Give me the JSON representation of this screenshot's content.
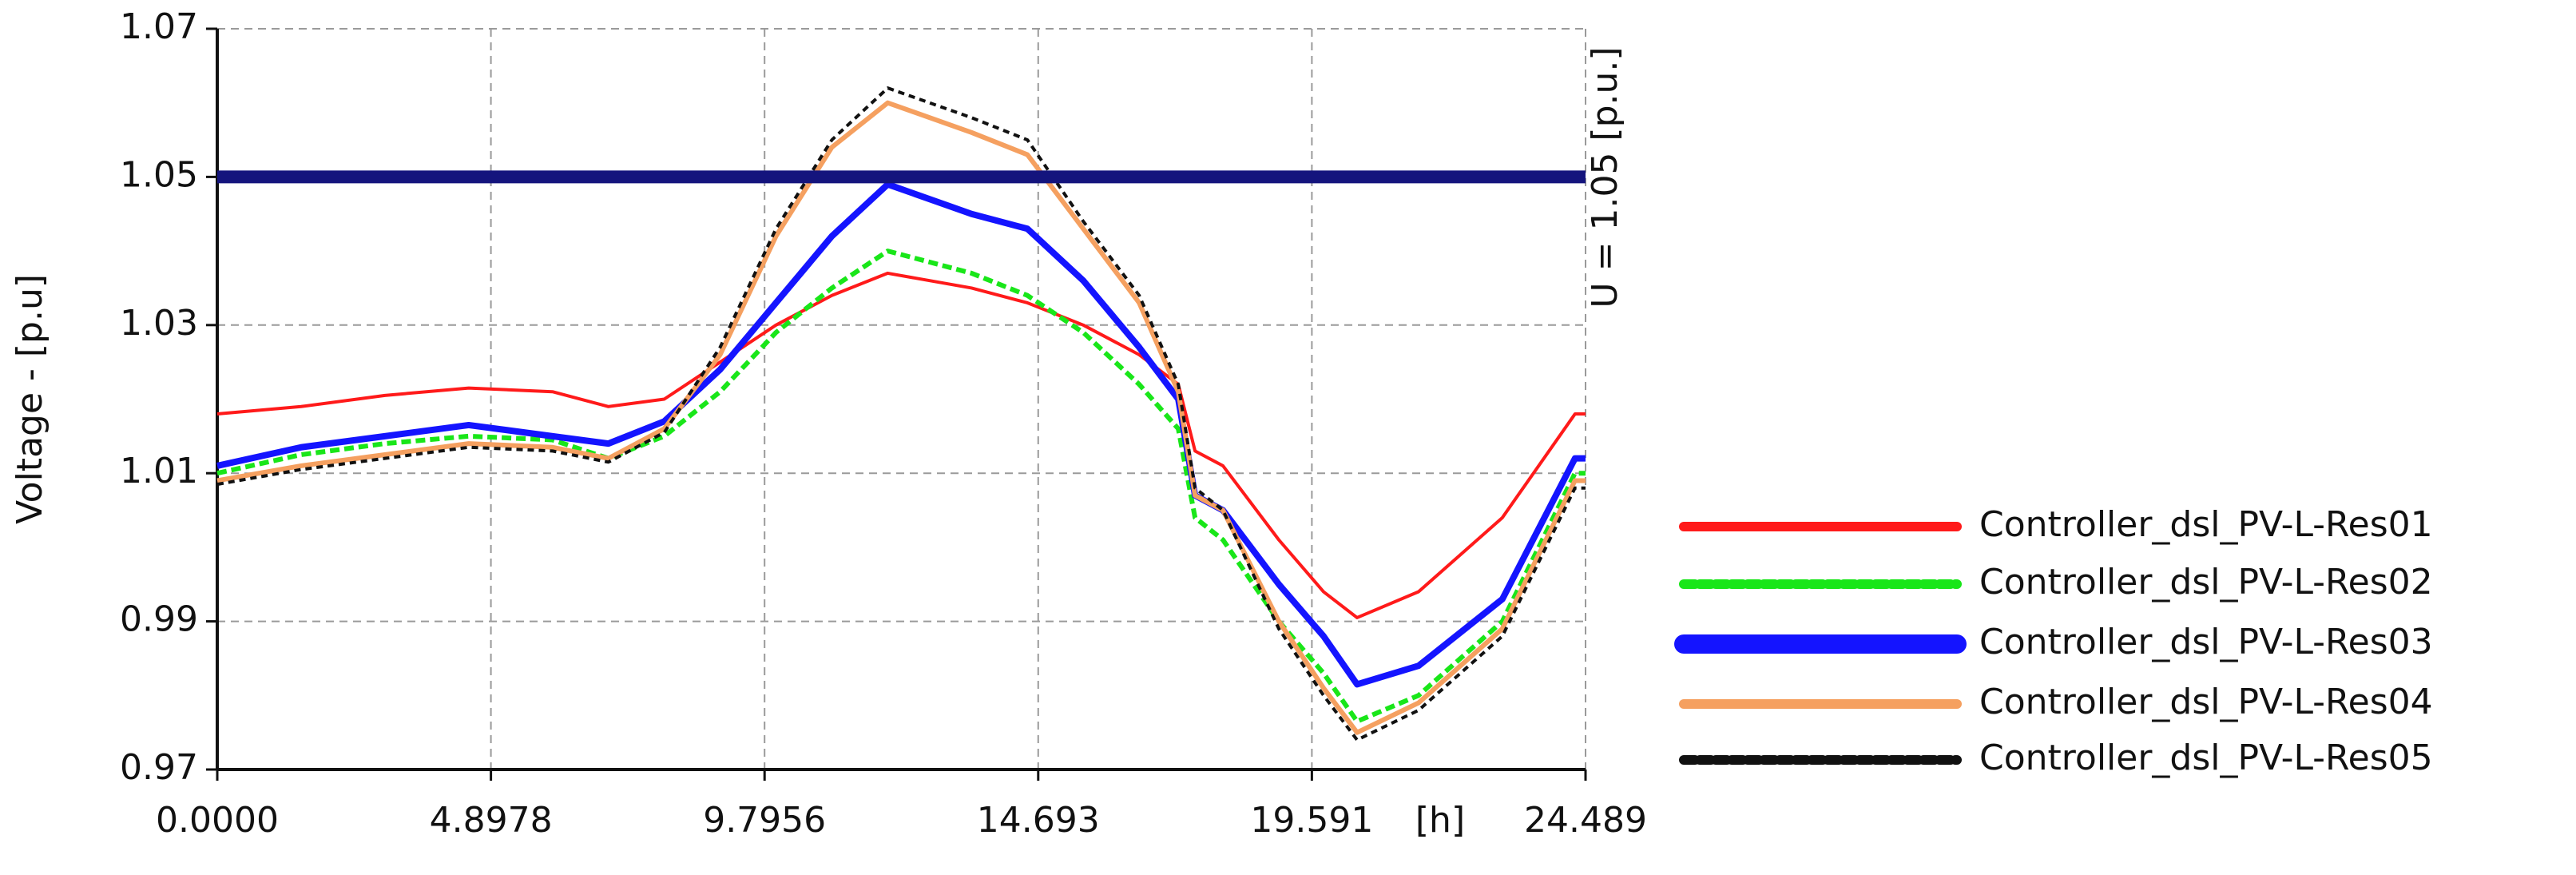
{
  "chart_data": {
    "type": "line",
    "y_label": "Voltage - [p.u]",
    "x_label": "[h]",
    "xlim": [
      0,
      24.489
    ],
    "xticks": [
      {
        "value": 0,
        "label": "0.0000"
      },
      4.8978,
      9.7956,
      14.693,
      19.591,
      24.489
    ],
    "ylim": [
      0.97,
      1.07
    ],
    "yticks": [
      0.97,
      0.99,
      1.01,
      1.03,
      1.05,
      1.07
    ],
    "grid": true,
    "threshold": {
      "value": 1.05,
      "label": "U = 1.05 [p.u.]",
      "color": "#14147d"
    },
    "x": [
      0,
      1.5,
      3,
      4.5,
      6,
      7,
      8,
      9,
      10,
      11,
      12,
      13.5,
      14.5,
      15.5,
      16.5,
      17.2,
      17.5,
      18,
      19,
      19.8,
      20.4,
      21.5,
      23,
      24.3,
      24.489
    ],
    "series": [
      {
        "name": "Controller_dsl_PV-L-Res01",
        "color": "#ff1a1a",
        "width": 2,
        "dash": "none",
        "values": [
          1.018,
          1.019,
          1.0205,
          1.0215,
          1.021,
          1.019,
          1.02,
          1.025,
          1.03,
          1.034,
          1.037,
          1.035,
          1.033,
          1.03,
          1.026,
          1.022,
          1.013,
          1.011,
          1.001,
          0.994,
          0.9905,
          0.994,
          1.004,
          1.018,
          1.018
        ]
      },
      {
        "name": "Controller_dsl_PV-L-Res02",
        "color": "#19e619",
        "width": 3,
        "dash": "12 6",
        "values": [
          1.01,
          1.0125,
          1.014,
          1.015,
          1.0145,
          1.012,
          1.015,
          1.021,
          1.029,
          1.035,
          1.04,
          1.037,
          1.034,
          1.029,
          1.022,
          1.016,
          1.004,
          1.001,
          0.99,
          0.983,
          0.9765,
          0.98,
          0.99,
          1.01,
          1.01
        ]
      },
      {
        "name": "Controller_dsl_PV-L-Res03",
        "color": "#1414ff",
        "width": 4,
        "dash": "none",
        "values": [
          1.011,
          1.0135,
          1.015,
          1.0165,
          1.015,
          1.014,
          1.017,
          1.024,
          1.033,
          1.042,
          1.049,
          1.045,
          1.043,
          1.036,
          1.027,
          1.02,
          1.007,
          1.005,
          0.995,
          0.988,
          0.9815,
          0.984,
          0.993,
          1.012,
          1.012
        ]
      },
      {
        "name": "Controller_dsl_PV-L-Res04",
        "color": "#f5a060",
        "width": 3,
        "dash": "none",
        "values": [
          1.009,
          1.011,
          1.0125,
          1.014,
          1.0135,
          1.012,
          1.016,
          1.026,
          1.042,
          1.054,
          1.06,
          1.056,
          1.053,
          1.043,
          1.033,
          1.021,
          1.007,
          1.005,
          0.99,
          0.981,
          0.975,
          0.979,
          0.989,
          1.009,
          1.009
        ]
      },
      {
        "name": "Controller_dsl_PV-L-Res05",
        "color": "#111111",
        "width": 2,
        "dash": "8 6",
        "values": [
          1.0085,
          1.0105,
          1.012,
          1.0135,
          1.013,
          1.0115,
          1.0155,
          1.027,
          1.043,
          1.055,
          1.062,
          1.058,
          1.055,
          1.044,
          1.034,
          1.022,
          1.008,
          1.005,
          0.989,
          0.98,
          0.974,
          0.978,
          0.988,
          1.008,
          1.008
        ]
      }
    ]
  }
}
